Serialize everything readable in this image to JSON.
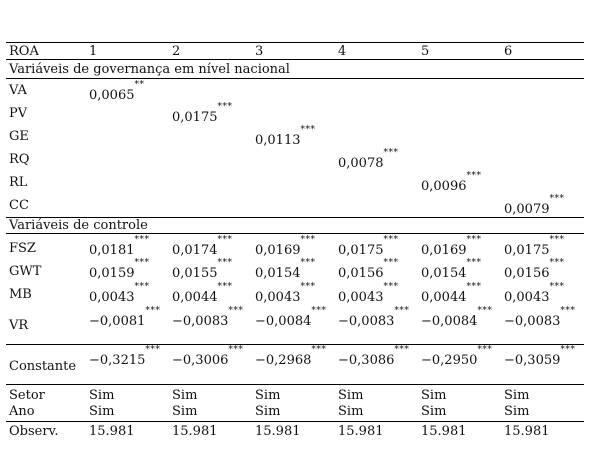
{
  "header": {
    "label": "ROA",
    "columns": [
      "1",
      "2",
      "3",
      "4",
      "5",
      "6"
    ]
  },
  "sections": {
    "governance": "Variáveis de governança em nível nacional",
    "controls": "Variáveis de controle"
  },
  "governance_rows": [
    {
      "label": "VA",
      "col": 0,
      "value": "0,0065",
      "stars": "**"
    },
    {
      "label": "PV",
      "col": 1,
      "value": "0,0175",
      "stars": "***"
    },
    {
      "label": "GE",
      "col": 2,
      "value": "0,0113",
      "stars": "***"
    },
    {
      "label": "RQ",
      "col": 3,
      "value": "0,0078",
      "stars": "***"
    },
    {
      "label": "RL",
      "col": 4,
      "value": "0,0096",
      "stars": "***"
    },
    {
      "label": "CC",
      "col": 5,
      "value": "0,0079",
      "stars": "***"
    }
  ],
  "control_rows": [
    {
      "label": "FSZ",
      "values": [
        "0,0181",
        "0,0174",
        "0,0169",
        "0,0175",
        "0,0169",
        "0,0175"
      ],
      "stars": "***"
    },
    {
      "label": "GWT",
      "values": [
        "0,0159",
        "0,0155",
        "0,0154",
        "0,0156",
        "0,0154",
        "0,0156"
      ],
      "stars": "***"
    },
    {
      "label": "MB",
      "values": [
        "0,0043",
        "0,0044",
        "0,0043",
        "0,0043",
        "0,0044",
        "0,0043"
      ],
      "stars": "***"
    },
    {
      "label": "VR",
      "values": [
        "−0,0081",
        "−0,0083",
        "−0,0084",
        "−0,0083",
        "−0,0084",
        "−0,0083"
      ],
      "stars": "***"
    }
  ],
  "constant_row": {
    "label": "Constante",
    "values": [
      "−0,3215",
      "−0,3006",
      "−0,2968",
      "−0,3086",
      "−0,2950",
      "−0,3059"
    ],
    "stars": "***"
  },
  "bottom_rows": [
    {
      "label": "Setor",
      "values": [
        "Sim",
        "Sim",
        "Sim",
        "Sim",
        "Sim",
        "Sim"
      ]
    },
    {
      "label": "Ano",
      "values": [
        "Sim",
        "Sim",
        "Sim",
        "Sim",
        "Sim",
        "Sim"
      ]
    },
    {
      "label": "Observ.",
      "values": [
        "15.981",
        "15.981",
        "15.981",
        "15.981",
        "15.981",
        "15.981"
      ]
    }
  ]
}
